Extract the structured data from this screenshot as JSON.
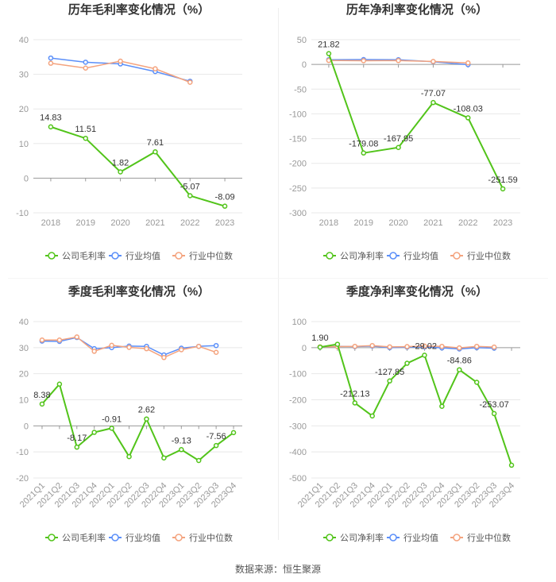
{
  "source": "数据来源：恒生聚源",
  "colors": {
    "company": "#52c41a",
    "avg": "#5b8ff9",
    "median": "#f4a37e",
    "grid": "#e8e8e8",
    "axis": "#999999"
  },
  "chart_data": [
    {
      "type": "line",
      "title": "历年毛利率变化情况（%）",
      "categories": [
        "2018",
        "2019",
        "2020",
        "2021",
        "2022",
        "2023"
      ],
      "ylim": [
        -10,
        40
      ],
      "yticks": [
        -10,
        0,
        10,
        20,
        30,
        40
      ],
      "rotate_labels": false,
      "series": [
        {
          "name": "公司毛利率",
          "key": "company",
          "values": [
            14.83,
            11.51,
            1.82,
            7.61,
            -5.07,
            -8.09
          ]
        },
        {
          "name": "行业均值",
          "key": "avg",
          "values": [
            34.7,
            33.5,
            33.0,
            30.8,
            28.0,
            null
          ]
        },
        {
          "name": "行业中位数",
          "key": "median",
          "values": [
            33.2,
            31.8,
            33.8,
            31.6,
            27.7,
            null
          ]
        }
      ],
      "data_labels": [
        {
          "i": 0,
          "text": "14.83"
        },
        {
          "i": 1,
          "text": "11.51"
        },
        {
          "i": 2,
          "text": "1.82"
        },
        {
          "i": 3,
          "text": "7.61"
        },
        {
          "i": 4,
          "text": "-5.07"
        },
        {
          "i": 5,
          "text": "-8.09"
        }
      ]
    },
    {
      "type": "line",
      "title": "历年净利率变化情况（%）",
      "categories": [
        "2018",
        "2019",
        "2020",
        "2021",
        "2022",
        "2023"
      ],
      "ylim": [
        -300,
        50
      ],
      "yticks": [
        -300,
        -250,
        -200,
        -150,
        -100,
        -50,
        0,
        50
      ],
      "rotate_labels": false,
      "series": [
        {
          "name": "公司净利率",
          "key": "company",
          "values": [
            21.82,
            -179.08,
            -167.95,
            -77.07,
            -108.03,
            -251.59
          ]
        },
        {
          "name": "行业均值",
          "key": "avg",
          "values": [
            9.5,
            9.8,
            9.5,
            5.5,
            -0.5,
            null
          ]
        },
        {
          "name": "行业中位数",
          "key": "median",
          "values": [
            8.0,
            7.5,
            7.8,
            6.0,
            3.0,
            null
          ]
        }
      ],
      "data_labels": [
        {
          "i": 0,
          "text": "21.82"
        },
        {
          "i": 1,
          "text": "-179.08"
        },
        {
          "i": 2,
          "text": "-167.95"
        },
        {
          "i": 3,
          "text": "-77.07"
        },
        {
          "i": 4,
          "text": "-108.03"
        },
        {
          "i": 5,
          "text": "-251.59"
        }
      ]
    },
    {
      "type": "line",
      "title": "季度毛利率变化情况（%）",
      "categories": [
        "2021Q1",
        "2021Q2",
        "2021Q3",
        "2021Q4",
        "2022Q1",
        "2022Q2",
        "2022Q3",
        "2022Q4",
        "2023Q1",
        "2023Q2",
        "2023Q3",
        "2023Q4"
      ],
      "ylim": [
        -20,
        40
      ],
      "yticks": [
        -20,
        -10,
        0,
        10,
        20,
        30,
        40
      ],
      "rotate_labels": true,
      "series": [
        {
          "name": "公司毛利率",
          "key": "company",
          "values": [
            8.38,
            16.0,
            -8.17,
            -2.5,
            -0.91,
            -11.8,
            2.62,
            -12.3,
            -9.13,
            -13.3,
            -7.56,
            -2.6
          ]
        },
        {
          "name": "行业均值",
          "key": "avg",
          "values": [
            32.5,
            32.4,
            33.9,
            29.6,
            30.0,
            30.6,
            30.5,
            27.2,
            29.8,
            30.5,
            30.8,
            null
          ]
        },
        {
          "name": "行业中位数",
          "key": "median",
          "values": [
            32.9,
            32.9,
            34.1,
            28.6,
            30.9,
            30.1,
            29.6,
            26.2,
            29.2,
            30.5,
            28.2,
            null
          ]
        }
      ],
      "data_labels": [
        {
          "i": 0,
          "text": "8.38"
        },
        {
          "i": 2,
          "text": "-8.17"
        },
        {
          "i": 4,
          "text": "-0.91"
        },
        {
          "i": 6,
          "text": "2.62"
        },
        {
          "i": 8,
          "text": "-9.13"
        },
        {
          "i": 10,
          "text": "-7.56"
        }
      ]
    },
    {
      "type": "line",
      "title": "季度净利率变化情况（%）",
      "categories": [
        "2021Q1",
        "2021Q2",
        "2021Q3",
        "2021Q4",
        "2022Q1",
        "2022Q2",
        "2022Q3",
        "2022Q4",
        "2023Q1",
        "2023Q2",
        "2023Q3",
        "2023Q4"
      ],
      "ylim": [
        -500,
        100
      ],
      "yticks": [
        -500,
        -400,
        -300,
        -200,
        -100,
        0,
        100
      ],
      "rotate_labels": true,
      "series": [
        {
          "name": "公司净利率",
          "key": "company",
          "values": [
            1.9,
            13.0,
            -212.13,
            -262.0,
            -127.85,
            -60.0,
            -29.02,
            -225.0,
            -84.86,
            -133.0,
            -253.07,
            -451.0
          ]
        },
        {
          "name": "行业均值",
          "key": "avg",
          "values": [
            2.0,
            5.0,
            4.0,
            6.0,
            0.0,
            2.0,
            3.0,
            -1.0,
            -5.0,
            0.0,
            -2.0,
            null
          ]
        },
        {
          "name": "行业中位数",
          "key": "median",
          "values": [
            3.0,
            4.0,
            5.0,
            8.0,
            3.0,
            4.0,
            6.0,
            5.0,
            -1.0,
            5.0,
            2.0,
            null
          ]
        }
      ],
      "data_labels": [
        {
          "i": 0,
          "text": "1.90"
        },
        {
          "i": 2,
          "text": "-212.13"
        },
        {
          "i": 4,
          "text": "-127.85"
        },
        {
          "i": 6,
          "text": "-29.02"
        },
        {
          "i": 8,
          "text": "-84.86"
        },
        {
          "i": 10,
          "text": "-253.07"
        }
      ]
    }
  ]
}
